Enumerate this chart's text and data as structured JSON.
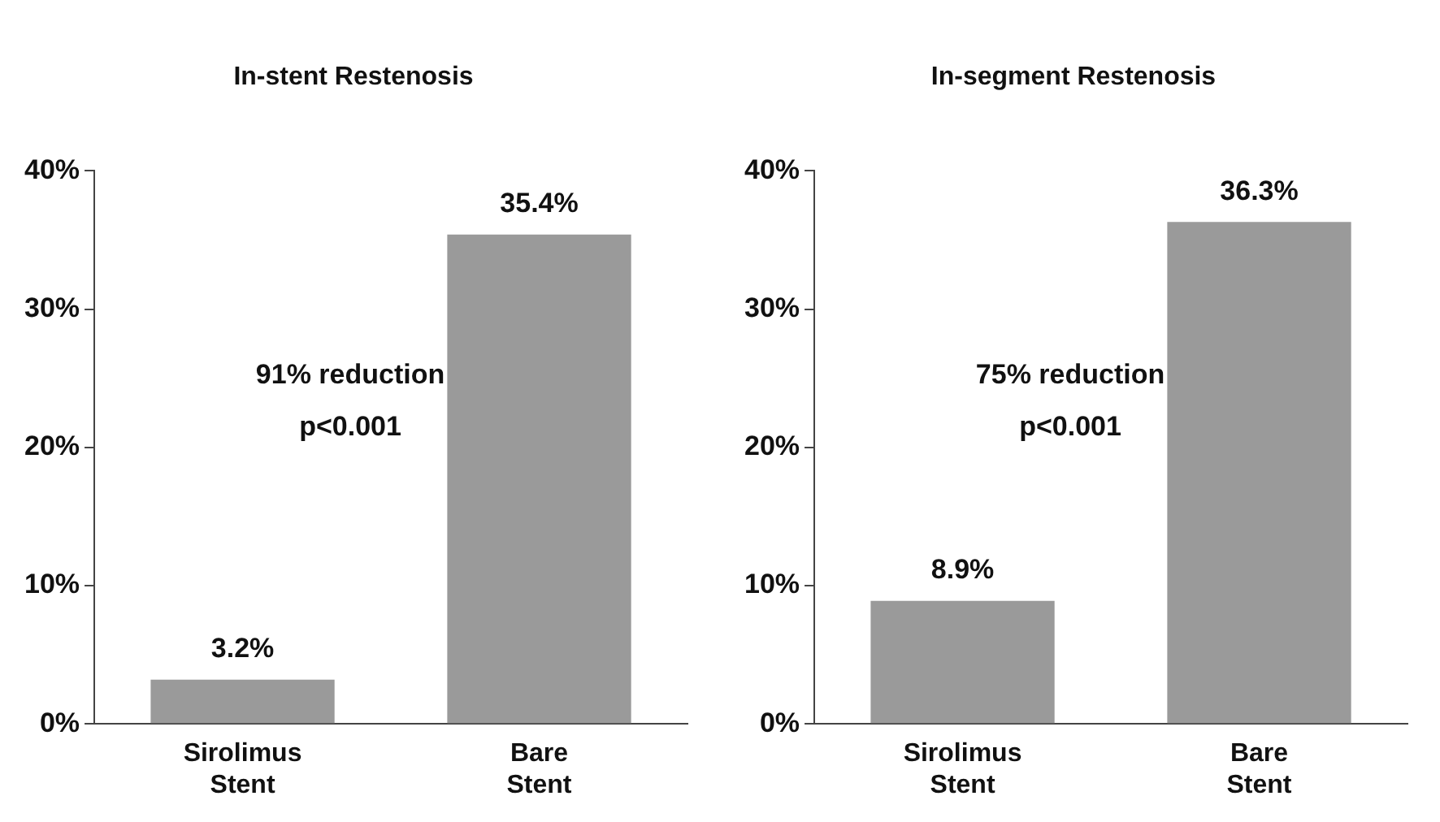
{
  "chart_data": [
    {
      "type": "bar",
      "title": "In-stent Restenosis",
      "categories": [
        "Sirolimus Stent",
        "Bare Stent"
      ],
      "values": [
        3.2,
        35.4
      ],
      "color": "#9a9a9a",
      "ylim": [
        0,
        40
      ],
      "yticks": [
        {
          "value": 0,
          "label": "0%"
        },
        {
          "value": 10,
          "label": "10%"
        },
        {
          "value": 20,
          "label": "20%"
        },
        {
          "value": 30,
          "label": "30%"
        },
        {
          "value": 40,
          "label": "40%"
        }
      ],
      "grid": false,
      "value_labels": [
        "3.2%",
        "35.4%"
      ],
      "annotations": [
        "91% reduction",
        "p<0.001"
      ]
    },
    {
      "type": "bar",
      "title": "In-segment Restenosis",
      "categories": [
        "Sirolimus Stent",
        "Bare Stent"
      ],
      "values": [
        8.9,
        36.3
      ],
      "color": "#9a9a9a",
      "ylim": [
        0,
        40
      ],
      "yticks": [
        {
          "value": 0,
          "label": "0%"
        },
        {
          "value": 10,
          "label": "10%"
        },
        {
          "value": 20,
          "label": "20%"
        },
        {
          "value": 30,
          "label": "30%"
        },
        {
          "value": 40,
          "label": "40%"
        }
      ],
      "grid": false,
      "value_labels": [
        "8.9%",
        "36.3%"
      ],
      "annotations": [
        "75% reduction",
        "p<0.001"
      ]
    }
  ]
}
